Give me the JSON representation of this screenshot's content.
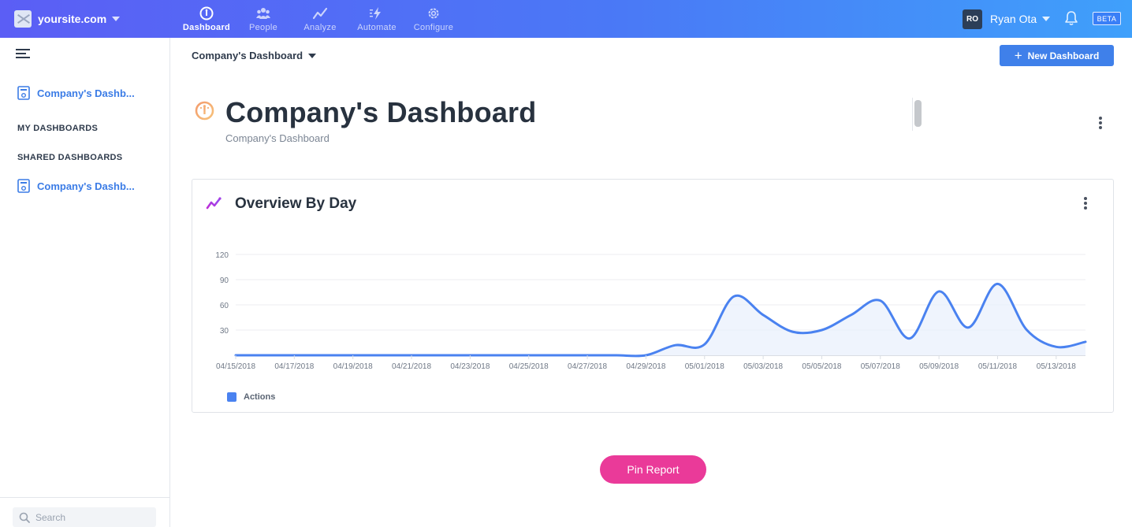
{
  "topbar": {
    "site_name": "yoursite.com",
    "nav": [
      {
        "label": "Dashboard",
        "active": true
      },
      {
        "label": "People",
        "active": false
      },
      {
        "label": "Analyze",
        "active": false
      },
      {
        "label": "Automate",
        "active": false
      },
      {
        "label": "Configure",
        "active": false
      }
    ],
    "user_initials": "RO",
    "user_name": "Ryan Ota",
    "beta_label": "BETA"
  },
  "sidebar": {
    "pinned_dashboard": "Company's Dashb...",
    "my_dashboards_heading": "MY DASHBOARDS",
    "shared_dashboards_heading": "SHARED DASHBOARDS",
    "shared_dashboard": "Company's Dashb...",
    "search_placeholder": "Search"
  },
  "main": {
    "breadcrumb": "Company's Dashboard",
    "new_dashboard_label": "New Dashboard",
    "title": "Company's Dashboard",
    "subtitle": "Company's Dashboard",
    "pin_report_label": "Pin Report"
  },
  "report": {
    "title": "Overview By Day",
    "legend_label": "Actions"
  },
  "colors": {
    "line": "#4a82f0",
    "fill": "#e8effc",
    "pin": "#ea3a99",
    "accent": "#3f80ea"
  },
  "chart_data": {
    "type": "line",
    "title": "Overview By Day",
    "x": [
      "04/15/2018",
      "04/16/2018",
      "04/17/2018",
      "04/18/2018",
      "04/19/2018",
      "04/20/2018",
      "04/21/2018",
      "04/22/2018",
      "04/23/2018",
      "04/24/2018",
      "04/25/2018",
      "04/26/2018",
      "04/27/2018",
      "04/28/2018",
      "04/29/2018",
      "04/30/2018",
      "05/01/2018",
      "05/02/2018",
      "05/03/2018",
      "05/04/2018",
      "05/05/2018",
      "05/06/2018",
      "05/07/2018",
      "05/08/2018",
      "05/09/2018",
      "05/10/2018",
      "05/11/2018",
      "05/12/2018",
      "05/13/2018",
      "05/14/2018"
    ],
    "x_tick_labels": [
      "04/15/2018",
      "04/17/2018",
      "04/19/2018",
      "04/21/2018",
      "04/23/2018",
      "04/25/2018",
      "04/27/2018",
      "04/29/2018",
      "05/01/2018",
      "05/03/2018",
      "05/05/2018",
      "05/07/2018",
      "05/09/2018",
      "05/11/2018",
      "05/13/2018"
    ],
    "series": [
      {
        "name": "Actions",
        "values": [
          0,
          0,
          0,
          0,
          0,
          0,
          0,
          0,
          0,
          0,
          0,
          0,
          0,
          0,
          0,
          12,
          13,
          70,
          48,
          28,
          30,
          48,
          65,
          20,
          76,
          33,
          85,
          30,
          10,
          16
        ]
      }
    ],
    "y_ticks": [
      30,
      60,
      90,
      120
    ],
    "ylim": [
      0,
      120
    ],
    "grid": true,
    "legend": "bottom-left"
  }
}
